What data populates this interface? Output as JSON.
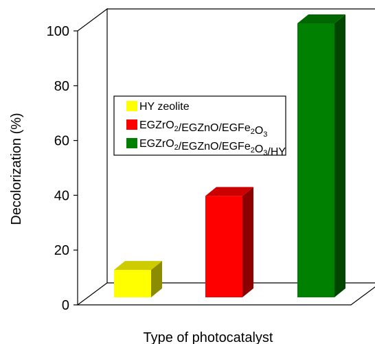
{
  "chart_data": {
    "type": "bar",
    "three_d": true,
    "categories": [
      "HY zeolite",
      "EGZrO2/EGZnO/EGFe2O3",
      "EGZrO2/EGZnO/EGFe2O3/HY"
    ],
    "values": [
      10,
      37,
      100
    ],
    "colors": [
      "#ffff00",
      "#ff0000",
      "#008000"
    ],
    "title": "",
    "xlabel": "Type of photocatalyst",
    "ylabel": "Decolorization (%)",
    "ylim": [
      0,
      100
    ],
    "yticks": [
      0,
      20,
      40,
      60,
      80,
      100
    ],
    "grid": false,
    "legend": {
      "position": "upper-left-inside",
      "entries": [
        {
          "parts": [
            {
              "t": "HY zeolite"
            }
          ]
        },
        {
          "parts": [
            {
              "t": "EGZrO"
            },
            {
              "t": "2",
              "sub": true
            },
            {
              "t": "/EGZnO/EGFe"
            },
            {
              "t": "2",
              "sub": true
            },
            {
              "t": "O"
            },
            {
              "t": "3",
              "sub": true
            }
          ]
        },
        {
          "parts": [
            {
              "t": "EGZrO"
            },
            {
              "t": "2",
              "sub": true
            },
            {
              "t": "/EGZnO/EGFe"
            },
            {
              "t": "2",
              "sub": true
            },
            {
              "t": "O"
            },
            {
              "t": "3",
              "sub": true
            },
            {
              "t": "/HY"
            }
          ]
        }
      ]
    }
  }
}
